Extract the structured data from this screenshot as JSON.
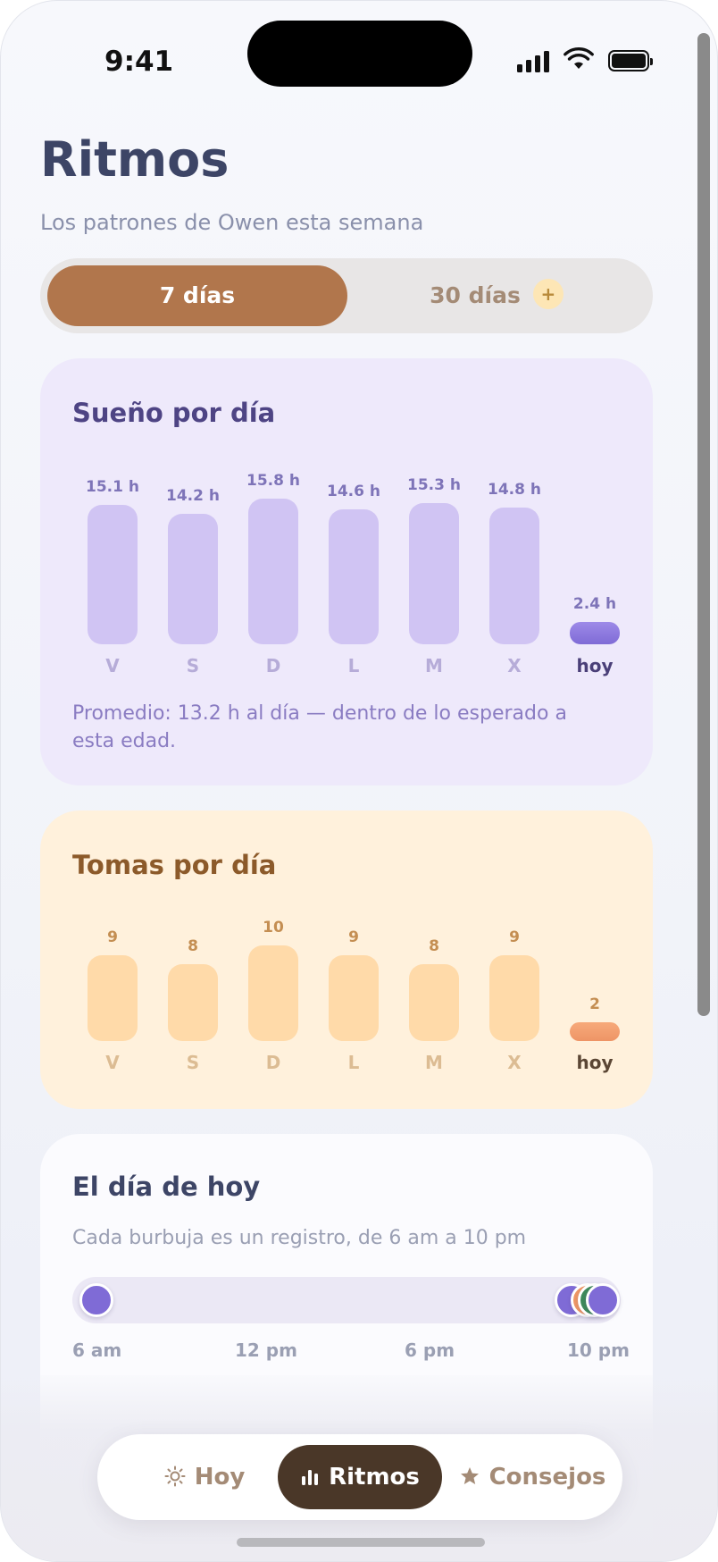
{
  "status_bar": {
    "time": "9:41"
  },
  "header": {
    "title": "Ritmos",
    "subtitle": "Los patrones de Owen esta semana"
  },
  "range_toggle": {
    "options": [
      {
        "label": "7 días",
        "selected": true
      },
      {
        "label": "30 días",
        "selected": false,
        "badge": "+"
      }
    ]
  },
  "sleep_card": {
    "title": "Sueño por día",
    "note": "Promedio: 13.2 h al día — dentro de lo esperado a esta edad.",
    "colors": {
      "bar": "#d0c4f3",
      "today_bar": "#8b78de"
    }
  },
  "feed_card": {
    "title": "Tomas por día",
    "colors": {
      "bar": "#ffdaa9",
      "today_bar": "#f29f70"
    }
  },
  "today_card": {
    "title": "El día de hoy",
    "subtitle": "Cada burbuja es un registro, de 6 am a 10 pm",
    "ticks": [
      "6 am",
      "12 pm",
      "6 pm",
      "10 pm"
    ],
    "events": [
      {
        "hour": 6.0,
        "color": "#7f6bd6"
      },
      {
        "hour": 21.2,
        "color": "#7f6bd6"
      },
      {
        "hour": 21.7,
        "color": "#ef9766"
      },
      {
        "hour": 21.95,
        "color": "#3f8a5c"
      },
      {
        "hour": 22.2,
        "color": "#7f6bd6"
      }
    ]
  },
  "chart_data": [
    {
      "type": "bar",
      "title": "Sueño por día",
      "categories": [
        "V",
        "S",
        "D",
        "L",
        "M",
        "X",
        "hoy"
      ],
      "values": [
        15.1,
        14.2,
        15.8,
        14.6,
        15.3,
        14.8,
        2.4
      ],
      "value_labels": [
        "15.1 h",
        "14.2 h",
        "15.8 h",
        "14.6 h",
        "15.3 h",
        "14.8 h",
        "2.4 h"
      ],
      "ylim": [
        0,
        16
      ],
      "grid": false
    },
    {
      "type": "bar",
      "title": "Tomas por día",
      "categories": [
        "V",
        "S",
        "D",
        "L",
        "M",
        "X",
        "hoy"
      ],
      "values": [
        9,
        8,
        10,
        9,
        8,
        9,
        2
      ],
      "value_labels": [
        "9",
        "8",
        "10",
        "9",
        "8",
        "9",
        "2"
      ],
      "ylim": [
        0,
        10
      ],
      "grid": false
    }
  ],
  "bottom_nav": {
    "items": [
      {
        "label": "Hoy",
        "icon": "sun-icon",
        "active": false
      },
      {
        "label": "Ritmos",
        "icon": "bar-chart-icon",
        "active": true
      },
      {
        "label": "Consejos",
        "icon": "star-icon",
        "active": false
      }
    ]
  }
}
